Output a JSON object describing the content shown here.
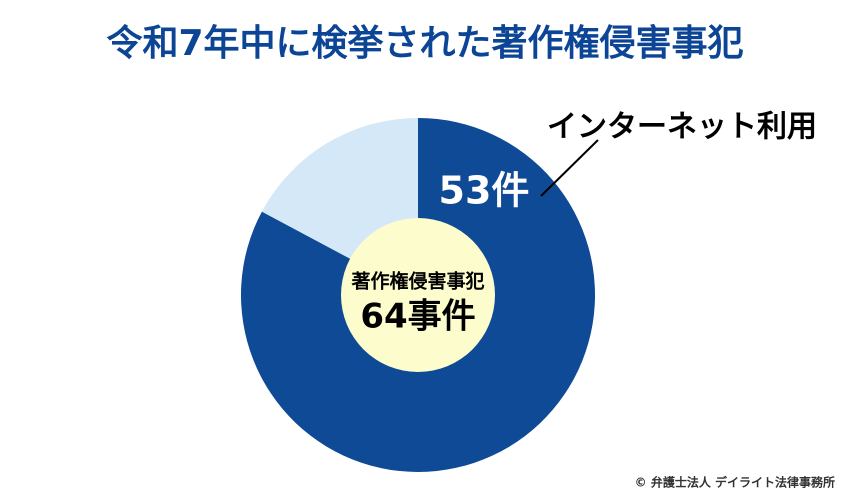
{
  "chart_data": {
    "type": "donut",
    "title": "令和7年中に検挙された著作権侵害事犯",
    "categories": [
      "インターネット利用",
      null
    ],
    "values": [
      53,
      11
    ],
    "value_labels": [
      "53件",
      null
    ],
    "colors": [
      "#0e4a96",
      "#d4e8f7"
    ],
    "center_title": "著作権侵害事犯",
    "total": {
      "value": 64,
      "label": "64事件"
    },
    "center_color": "#fdfccc",
    "credit": "© 弁護士法人 デイライト法律事務所"
  }
}
